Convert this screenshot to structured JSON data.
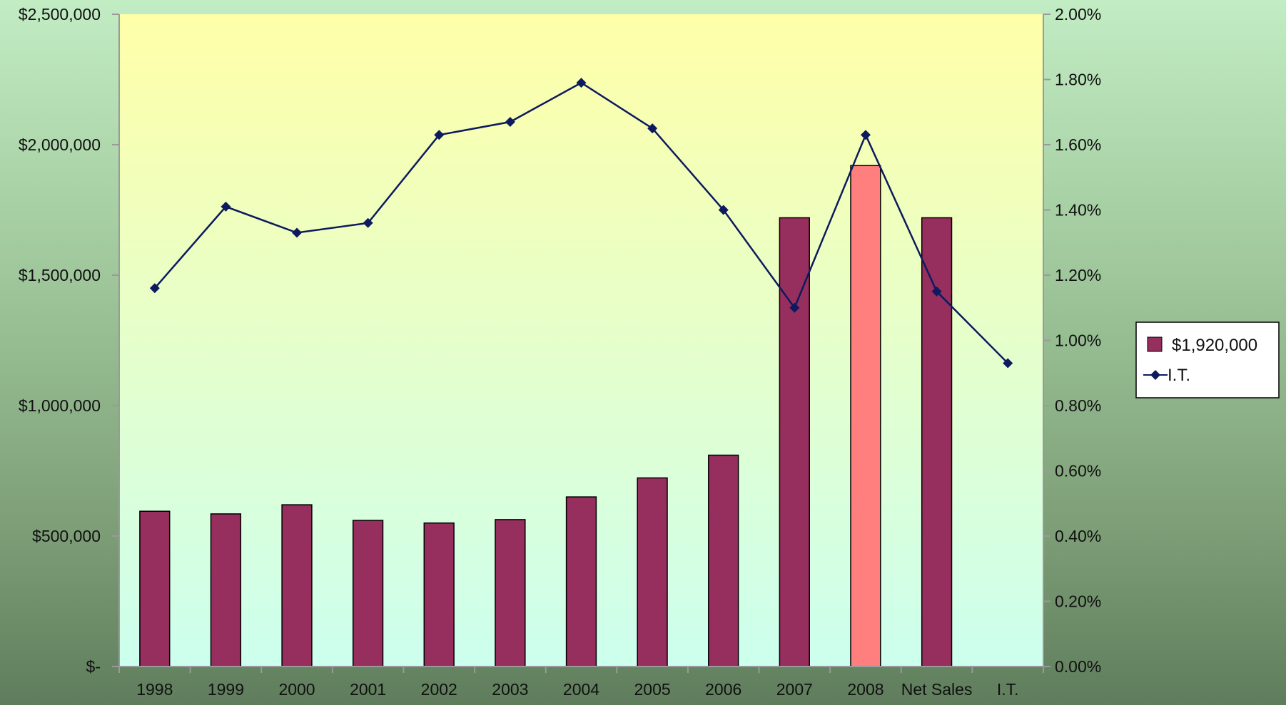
{
  "chart_data": {
    "type": "bar",
    "categories": [
      "1998",
      "1999",
      "2000",
      "2001",
      "2002",
      "2003",
      "2004",
      "2005",
      "2006",
      "2007",
      "2008",
      "Net Sales",
      "I.T."
    ],
    "series": [
      {
        "name": "$1,920,000",
        "type": "bar",
        "axis": "left",
        "values": [
          595000,
          585000,
          620000,
          560000,
          550000,
          563000,
          650000,
          723000,
          810000,
          1720000,
          1920000,
          1720000,
          null
        ],
        "color": "#962e5e",
        "highlight_color": "#ff7f7f",
        "highlight_category": "2008"
      },
      {
        "name": "I.T.",
        "type": "line",
        "axis": "right",
        "values": [
          1.16,
          1.41,
          1.33,
          1.36,
          1.63,
          1.67,
          1.79,
          1.65,
          1.4,
          1.1,
          1.63,
          1.15,
          0.93
        ],
        "color": "#0d1a5e"
      }
    ],
    "y_left": {
      "ylim": [
        0,
        2500000
      ],
      "ticks": [
        0,
        500000,
        1000000,
        1500000,
        2000000,
        2500000
      ],
      "tick_labels": [
        "$-",
        "$500,000",
        "$1,000,000",
        "$1,500,000",
        "$2,000,000",
        "$2,500,000"
      ]
    },
    "y_right": {
      "ylim": [
        0,
        2
      ],
      "ticks": [
        0,
        0.2,
        0.4,
        0.6,
        0.8,
        1.0,
        1.2,
        1.4,
        1.6,
        1.8,
        2.0
      ],
      "tick_labels": [
        "0.00%",
        "0.20%",
        "0.40%",
        "0.60%",
        "0.80%",
        "1.00%",
        "1.20%",
        "1.40%",
        "1.60%",
        "1.80%",
        "2.00%"
      ]
    },
    "title": "",
    "xlabel": "",
    "grid": false,
    "plot_background": [
      "#ffffa8",
      "#ccffee"
    ],
    "legend": {
      "placement": "right",
      "entries": [
        "$1,920,000",
        "I.T."
      ]
    }
  }
}
